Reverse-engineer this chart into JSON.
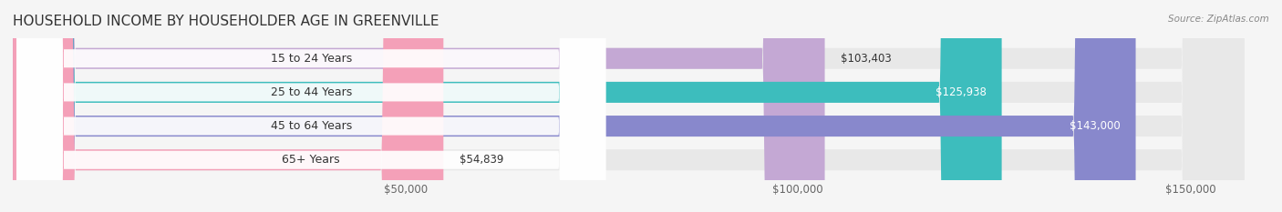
{
  "title": "HOUSEHOLD INCOME BY HOUSEHOLDER AGE IN GREENVILLE",
  "source_text": "Source: ZipAtlas.com",
  "categories": [
    "15 to 24 Years",
    "25 to 44 Years",
    "45 to 64 Years",
    "65+ Years"
  ],
  "values": [
    103403,
    125938,
    143000,
    54839
  ],
  "bar_colors": [
    "#c4a8d4",
    "#3dbdbd",
    "#8888cc",
    "#f4a0b8"
  ],
  "label_colors": [
    "#555555",
    "#ffffff",
    "#ffffff",
    "#555555"
  ],
  "bar_bg_color": "#eeeeee",
  "background_color": "#f5f5f5",
  "value_labels": [
    "$103,403",
    "$125,938",
    "$143,000",
    "$54,839"
  ],
  "x_tick_labels": [
    "$50,000",
    "$100,000",
    "$150,000"
  ],
  "x_tick_values": [
    50000,
    100000,
    150000
  ],
  "xlim": [
    0,
    160000
  ],
  "title_fontsize": 11,
  "bar_label_fontsize": 9,
  "value_label_fontsize": 8.5,
  "axis_label_fontsize": 8.5
}
